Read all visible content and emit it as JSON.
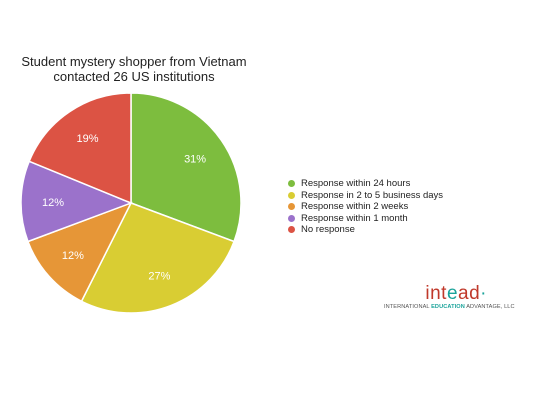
{
  "chart_data": {
    "type": "pie",
    "title_lines": [
      "Student mystery shopper from Vietnam",
      "contacted 26 US institutions"
    ],
    "slices": [
      {
        "label": "Response within 24 hours",
        "value": 31,
        "display": "31%",
        "color": "#7dbd3e"
      },
      {
        "label": "Response in 2 to 5 business days",
        "value": 27,
        "display": "27%",
        "color": "#d9cd33"
      },
      {
        "label": "Response within 2 weeks",
        "value": 12,
        "display": "12%",
        "color": "#e69637"
      },
      {
        "label": "Response within 1 month",
        "value": 12,
        "display": "12%",
        "color": "#9b72cb"
      },
      {
        "label": "No response",
        "value": 19,
        "display": "19%",
        "color": "#dc5344"
      }
    ],
    "legend_position": "right"
  },
  "logo": {
    "mark_a": "int",
    "mark_b": "e",
    "mark_c": "ad",
    "mark_dot": "·",
    "tag_a": "INTERNATIONAL ",
    "tag_b": "EDUCATION",
    "tag_c": " ADVANTAGE, LLC"
  }
}
